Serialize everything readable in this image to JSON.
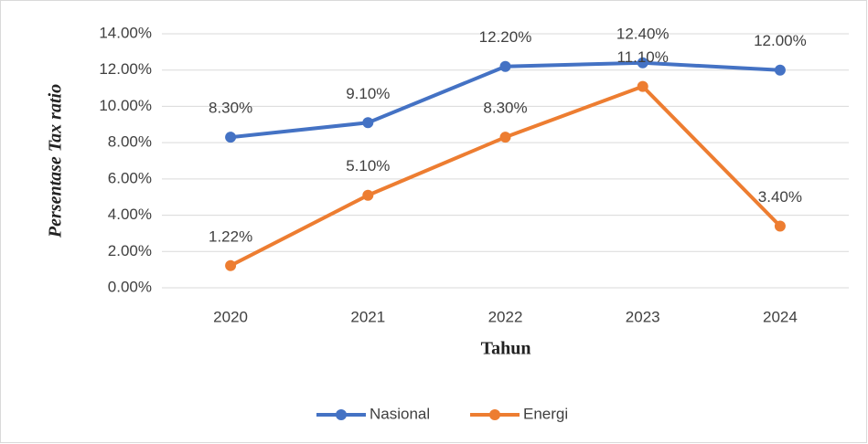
{
  "chart_data": {
    "type": "line",
    "y_axis_label": "Persentase Tax ratio",
    "x_axis_label": "Tahun",
    "categories": [
      "2020",
      "2021",
      "2022",
      "2023",
      "2024"
    ],
    "series": [
      {
        "name": "Nasional",
        "color": "#4472c4",
        "values": [
          8.3,
          9.1,
          12.2,
          12.4,
          12.0
        ],
        "value_labels": [
          "8.30%",
          "9.10%",
          "12.20%",
          "12.40%",
          "12.00%"
        ]
      },
      {
        "name": "Energi",
        "color": "#ed7d31",
        "values": [
          1.22,
          5.1,
          8.3,
          11.1,
          3.4
        ],
        "value_labels": [
          "1.22%",
          "5.10%",
          "8.30%",
          "11.10%",
          "3.40%"
        ]
      }
    ],
    "ylim": [
      0,
      14
    ],
    "yticks": [
      {
        "value": 0,
        "label": "0.00%"
      },
      {
        "value": 2,
        "label": "2.00%"
      },
      {
        "value": 4,
        "label": "4.00%"
      },
      {
        "value": 6,
        "label": "6.00%"
      },
      {
        "value": 8,
        "label": "8.00%"
      },
      {
        "value": 10,
        "label": "10.00%"
      },
      {
        "value": 12,
        "label": "12.00%"
      },
      {
        "value": 14,
        "label": "14.00%"
      }
    ],
    "grid": true,
    "legend": "bottom"
  }
}
